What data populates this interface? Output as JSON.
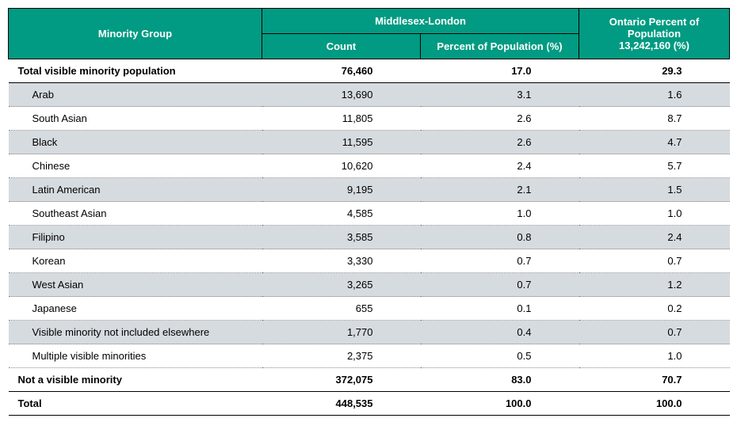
{
  "header": {
    "minority_group": "Minority Group",
    "region": "Middlesex-London",
    "count": "Count",
    "pct_pop": "Percent of Population  (%)",
    "ontario_line1": "Ontario Percent of Population",
    "ontario_line2": "13,242,160  (%)"
  },
  "rows": [
    {
      "type": "total",
      "label": "Total visible minority population",
      "count": "76,460",
      "pct": "17.0",
      "ont": "29.3"
    },
    {
      "type": "sub",
      "shade": true,
      "label": "Arab",
      "count": "13,690",
      "pct": "3.1",
      "ont": "1.6"
    },
    {
      "type": "sub",
      "shade": false,
      "label": "South Asian",
      "count": "11,805",
      "pct": "2.6",
      "ont": "8.7"
    },
    {
      "type": "sub",
      "shade": true,
      "label": "Black",
      "count": "11,595",
      "pct": "2.6",
      "ont": "4.7"
    },
    {
      "type": "sub",
      "shade": false,
      "label": "Chinese",
      "count": "10,620",
      "pct": "2.4",
      "ont": "5.7"
    },
    {
      "type": "sub",
      "shade": true,
      "label": "Latin American",
      "count": "9,195",
      "pct": "2.1",
      "ont": "1.5"
    },
    {
      "type": "sub",
      "shade": false,
      "label": "Southeast Asian",
      "count": "4,585",
      "pct": "1.0",
      "ont": "1.0"
    },
    {
      "type": "sub",
      "shade": true,
      "label": "Filipino",
      "count": "3,585",
      "pct": "0.8",
      "ont": "2.4"
    },
    {
      "type": "sub",
      "shade": false,
      "label": "Korean",
      "count": "3,330",
      "pct": "0.7",
      "ont": "0.7"
    },
    {
      "type": "sub",
      "shade": true,
      "label": "West Asian",
      "count": "3,265",
      "pct": "0.7",
      "ont": "1.2"
    },
    {
      "type": "sub",
      "shade": false,
      "label": "Japanese",
      "count": "655",
      "pct": "0.1",
      "ont": "0.2"
    },
    {
      "type": "sub",
      "shade": true,
      "label": "Visible minority not included elsewhere",
      "count": "1,770",
      "pct": "0.4",
      "ont": "0.7"
    },
    {
      "type": "sub",
      "shade": false,
      "label": "Multiple visible minorities",
      "count": "2,375",
      "pct": "0.5",
      "ont": "1.0"
    },
    {
      "type": "total",
      "label": "Not a visible minority",
      "count": "372,075",
      "pct": "83.0",
      "ont": "70.7"
    },
    {
      "type": "total",
      "label": "Total",
      "count": "448,535",
      "pct": "100.0",
      "ont": "100.0"
    }
  ],
  "style": {
    "header_bg": "#009b82",
    "header_fg": "#ffffff",
    "shade_bg": "#d6dbe0",
    "border": "#000000",
    "dotted": "#888888",
    "font_size": 13
  }
}
